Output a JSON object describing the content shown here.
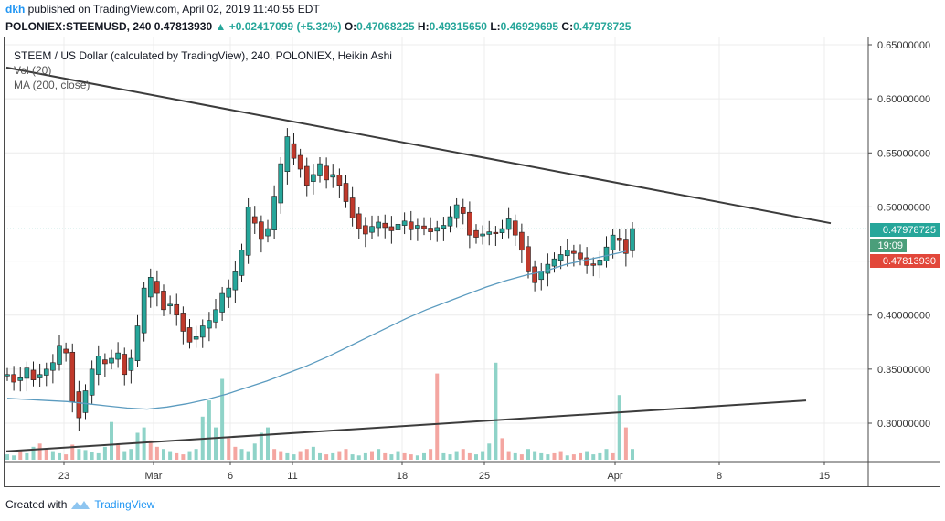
{
  "header": {
    "user": "dkh",
    "published": " published on TradingView.com, April 02, 2019 11:40:55 EDT",
    "symbol": "POLONIEX:STEEMUSD, 240",
    "last": "0.47813930",
    "change": "+0.02417099 (+5.32%)",
    "o_label": "O:",
    "o": "0.47068225",
    "h_label": "H:",
    "h": "0.49315650",
    "l_label": "L:",
    "l": "0.46929695",
    "c_label": "C:",
    "c": "0.47978725",
    "up_icon": "triangle-up-icon"
  },
  "legend": {
    "title": "STEEM / US Dollar (calculated by TradingView), 240, POLONIEX, Heikin Ashi",
    "vol": "Vol (20)",
    "ma": "MA (200, close)"
  },
  "footer": {
    "created": "Created with",
    "brand": "TradingView",
    "logo_icon": "tradingview-logo-icon"
  },
  "colors": {
    "up": "#26a69a",
    "down": "#c0392b",
    "ma": "#5b9bbf",
    "trend": "#3c3c3c",
    "vol_up": "#8fd3c8",
    "vol_down": "#f4a6a1"
  },
  "chart_data": {
    "type": "candlestick",
    "style": "Heikin Ashi",
    "yaxis_ticks": [
      "0.65000000",
      "0.60000000",
      "0.55000000",
      "0.50000000",
      "0.45000000",
      "0.40000000",
      "0.35000000",
      "0.30000000"
    ],
    "xaxis_ticks": [
      "23",
      "Mar",
      "6",
      "11",
      "18",
      "25",
      "Apr",
      "8",
      "15"
    ],
    "ylim": [
      0.26,
      0.66
    ],
    "price_tags": {
      "current": "0.47978725",
      "countdown": "19:09",
      "last": "0.47813930"
    },
    "series_close": [
      0.345,
      0.338,
      0.342,
      0.351,
      0.34,
      0.345,
      0.35,
      0.356,
      0.372,
      0.365,
      0.32,
      0.305,
      0.33,
      0.35,
      0.362,
      0.355,
      0.36,
      0.365,
      0.345,
      0.36,
      0.39,
      0.425,
      0.435,
      0.42,
      0.405,
      0.41,
      0.4,
      0.385,
      0.375,
      0.38,
      0.39,
      0.395,
      0.405,
      0.42,
      0.425,
      0.44,
      0.46,
      0.5,
      0.485,
      0.47,
      0.48,
      0.51,
      0.54,
      0.565,
      0.545,
      0.535,
      0.52,
      0.53,
      0.54,
      0.525,
      0.53,
      0.52,
      0.505,
      0.49,
      0.48,
      0.475,
      0.482,
      0.486,
      0.481,
      0.478,
      0.484,
      0.487,
      0.479,
      0.483,
      0.48,
      0.477,
      0.481,
      0.483,
      0.491,
      0.502,
      0.494,
      0.474,
      0.472,
      0.475,
      0.477,
      0.476,
      0.48,
      0.489,
      0.474,
      0.46,
      0.44,
      0.43,
      0.44,
      0.447,
      0.452,
      0.456,
      0.46,
      0.457,
      0.452,
      0.446,
      0.446,
      0.451,
      0.463,
      0.474,
      0.469,
      0.457,
      0.48
    ],
    "ma_series": [
      0.323,
      0.322,
      0.321,
      0.32,
      0.318,
      0.316,
      0.314,
      0.313,
      0.315,
      0.318,
      0.322,
      0.327,
      0.333,
      0.339,
      0.346,
      0.353,
      0.361,
      0.37,
      0.379,
      0.388,
      0.397,
      0.405,
      0.412,
      0.419,
      0.426,
      0.432,
      0.437,
      0.441,
      0.447,
      0.451,
      0.455,
      0.459
    ],
    "volume_rel": [
      0.05,
      0.04,
      0.08,
      0.06,
      0.12,
      0.15,
      0.1,
      0.08,
      0.06,
      0.05,
      0.14,
      0.1,
      0.09,
      0.07,
      0.06,
      0.12,
      0.35,
      0.15,
      0.08,
      0.1,
      0.25,
      0.3,
      0.18,
      0.12,
      0.1,
      0.08,
      0.06,
      0.05,
      0.08,
      0.1,
      0.4,
      0.55,
      0.3,
      0.75,
      0.2,
      0.12,
      0.1,
      0.08,
      0.15,
      0.25,
      0.3,
      0.1,
      0.08,
      0.06,
      0.05,
      0.08,
      0.1,
      0.12,
      0.06,
      0.05,
      0.06,
      0.08,
      0.1,
      0.05,
      0.04,
      0.06,
      0.08,
      0.1,
      0.06,
      0.05,
      0.08,
      0.06,
      0.05,
      0.04,
      0.06,
      0.1,
      0.8,
      0.06,
      0.05,
      0.08,
      0.1,
      0.06,
      0.05,
      0.08,
      0.15,
      0.9,
      0.2,
      0.08,
      0.06,
      0.05,
      0.1,
      0.08,
      0.06,
      0.05,
      0.06,
      0.08,
      0.04,
      0.05,
      0.06,
      0.08,
      0.05,
      0.06,
      0.1,
      0.06,
      0.6,
      0.3,
      0.1
    ],
    "volume_up": [
      1,
      1,
      0,
      1,
      1,
      0,
      0,
      1,
      1,
      0,
      0,
      1,
      1,
      1,
      1,
      1,
      1,
      0,
      1,
      1,
      1,
      1,
      0,
      0,
      1,
      1,
      0,
      0,
      1,
      1,
      1,
      1,
      1,
      1,
      0,
      0,
      1,
      1,
      1,
      1,
      1,
      0,
      0,
      1,
      1,
      0,
      0,
      1,
      1,
      0,
      1,
      0,
      0,
      1,
      1,
      1,
      0,
      1,
      0,
      1,
      1,
      0,
      0,
      1,
      1,
      0,
      0,
      1,
      1,
      1,
      0,
      0,
      1,
      1,
      1,
      1,
      0,
      0,
      1,
      0,
      1,
      1,
      1,
      1,
      0,
      0,
      1,
      0,
      0,
      1,
      1,
      1,
      1,
      0,
      1,
      0,
      1
    ],
    "trendlines": [
      {
        "from": {
          "date": "Feb 18, 2019",
          "price": 0.629
        },
        "to": {
          "date": "Apr 15, 2019",
          "price": 0.485
        }
      },
      {
        "from": {
          "date": "Feb 18, 2019",
          "price": 0.274
        },
        "to": {
          "date": "Apr 14, 2019",
          "price": 0.321
        }
      }
    ],
    "last_line_price": 0.4798
  }
}
